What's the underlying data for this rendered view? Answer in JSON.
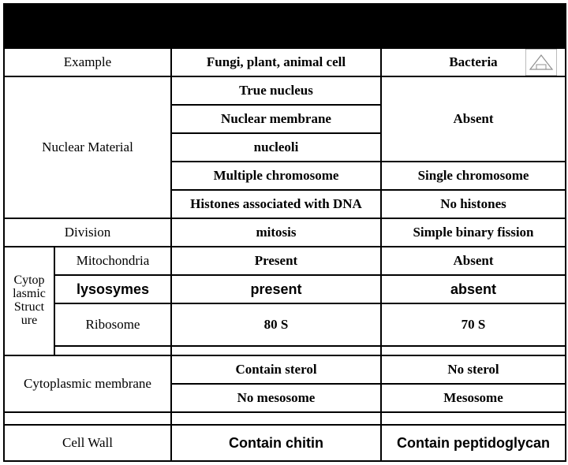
{
  "header": {
    "col1": "",
    "col2": "",
    "col3": ""
  },
  "example": {
    "label": "Example",
    "eu": "Fungi, plant, animal cell",
    "pro": "Bacteria"
  },
  "nuclear": {
    "label": "Nuclear Material",
    "r1": {
      "eu": "True nucleus",
      "pro": ""
    },
    "r2": {
      "eu": "Nuclear membrane",
      "pro": "Absent"
    },
    "r3": {
      "eu": "nucleoli",
      "pro": ""
    },
    "r4": {
      "eu": "Multiple chromosome",
      "pro": "Single chromosome"
    },
    "r5": {
      "eu": "Histones associated with DNA",
      "pro": "No histones"
    }
  },
  "division": {
    "label": "Division",
    "eu": "mitosis",
    "pro": "Simple binary fission"
  },
  "cyto": {
    "label": "Cytop\nlasmic\nStruct\nure",
    "mito": {
      "label": "Mitochondria",
      "eu": "Present",
      "pro": "Absent"
    },
    "lyso": {
      "label": "lysosymes",
      "eu": "present",
      "pro": "absent"
    },
    "ribo": {
      "label": "Ribosome",
      "eu": "80 S",
      "pro": "70 S"
    }
  },
  "membrane": {
    "label": "Cytoplasmic membrane",
    "r1": {
      "eu": "Contain sterol",
      "pro": "No sterol"
    },
    "r2": {
      "eu": "No mesosome",
      "pro": "Mesosome"
    }
  },
  "wall": {
    "label": "Cell Wall",
    "eu": "Contain chitin",
    "pro": "Contain peptidoglycan"
  },
  "colors": {
    "border": "#000000",
    "background": "#ffffff",
    "header_bg": "#000000"
  }
}
